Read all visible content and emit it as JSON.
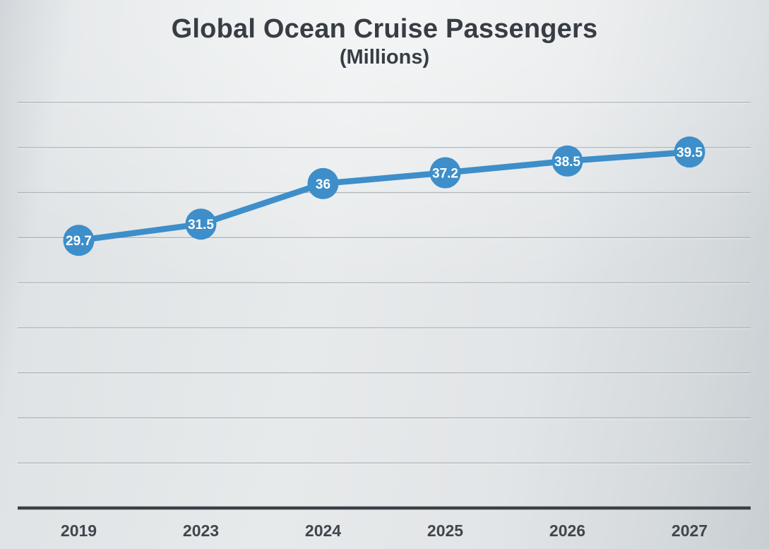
{
  "header": {
    "title": "Global Ocean Cruise Passengers",
    "subtitle": "(Millions)"
  },
  "colors": {
    "line": "#3d8ec9",
    "marker_fill": "#3d8ec9",
    "marker_label": "#ffffff",
    "grid": "#a7aeb4",
    "grid_highlight": "#f2f4f5",
    "axis": "#3a4045",
    "tick_label": "#3f464c",
    "title_color": "#373d43",
    "background": "#e2e5e7"
  },
  "chart_data": {
    "type": "line",
    "title": "Global Ocean Cruise Passengers",
    "subtitle": "(Millions)",
    "categories": [
      "2019",
      "2023",
      "2024",
      "2025",
      "2026",
      "2027"
    ],
    "series": [
      {
        "name": "Global Ocean Cruise Passengers (Millions)",
        "values": [
          29.7,
          31.5,
          36,
          37.2,
          38.5,
          39.5
        ],
        "labels": [
          "29.7",
          "31.5",
          "36",
          "37.2",
          "38.5",
          "39.5"
        ]
      }
    ],
    "xlabel": "",
    "ylabel": "",
    "ylim": [
      0,
      45
    ],
    "grid_step": 5,
    "grid": "horizontal gridlines, no y-axis tick labels",
    "legend": "none",
    "data_label_position": "inside circular markers"
  }
}
